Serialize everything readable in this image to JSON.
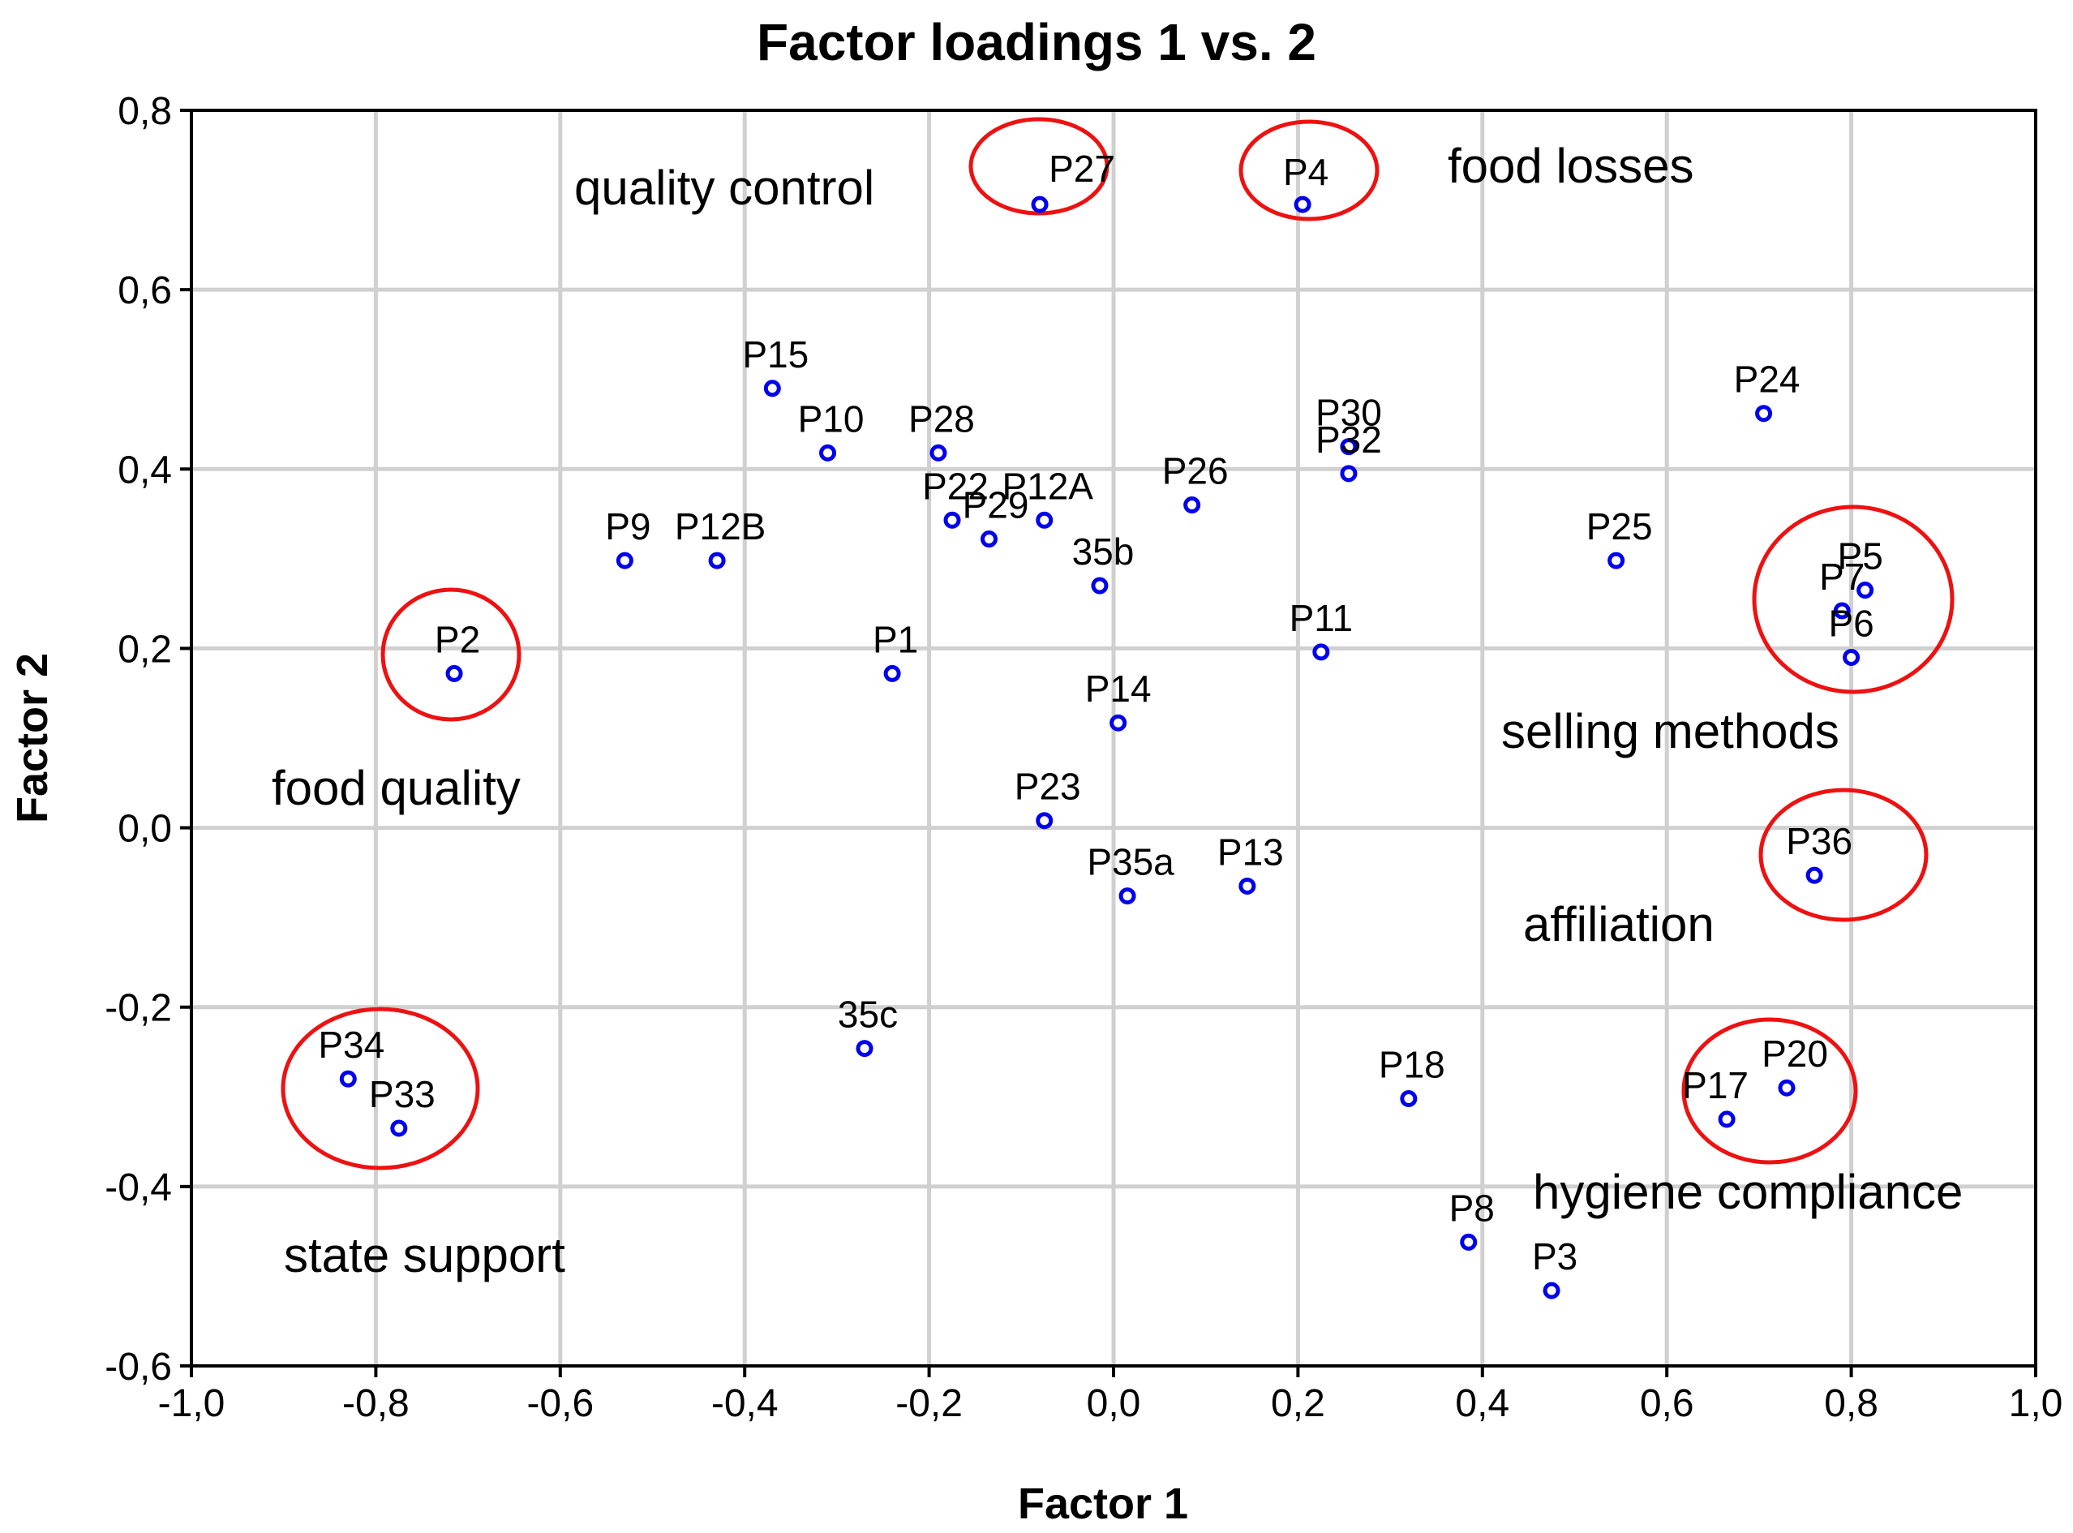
{
  "chart_data": {
    "type": "scatter",
    "title": "Factor loadings 1 vs. 2",
    "xlabel": "Factor 1",
    "ylabel": "Factor 2",
    "xlim": [
      -1.0,
      1.0
    ],
    "ylim": [
      -0.6,
      0.8
    ],
    "grid": true,
    "xticks": [
      -1.0,
      -0.8,
      -0.6,
      -0.4,
      -0.2,
      0.0,
      0.2,
      0.4,
      0.6,
      0.8,
      1.0
    ],
    "xtick_labels": [
      "-1,0",
      "-0,8",
      "-0,6",
      "-0,4",
      "-0,2",
      "0,0",
      "0,2",
      "0,4",
      "0,6",
      "0,8",
      "1,0"
    ],
    "yticks": [
      -0.6,
      -0.4,
      -0.2,
      0.0,
      0.2,
      0.4,
      0.6,
      0.8
    ],
    "ytick_labels": [
      "-0,6",
      "-0,4",
      "-0,2",
      "0,0",
      "0,2",
      "0,4",
      "0,6",
      "0,8"
    ],
    "points": [
      {
        "label": "P27",
        "x": -0.08,
        "y": 0.695
      },
      {
        "label": "P4",
        "x": 0.205,
        "y": 0.695
      },
      {
        "label": "P15",
        "x": -0.37,
        "y": 0.49
      },
      {
        "label": "P10",
        "x": -0.31,
        "y": 0.418
      },
      {
        "label": "P28",
        "x": -0.19,
        "y": 0.418
      },
      {
        "label": "P22",
        "x": -0.175,
        "y": 0.343
      },
      {
        "label": "P12A",
        "x": -0.075,
        "y": 0.343
      },
      {
        "label": "P29",
        "x": -0.135,
        "y": 0.322
      },
      {
        "label": "P26",
        "x": 0.085,
        "y": 0.36
      },
      {
        "label": "P30",
        "x": 0.255,
        "y": 0.425
      },
      {
        "label": "P32",
        "x": 0.255,
        "y": 0.395
      },
      {
        "label": "P24",
        "x": 0.705,
        "y": 0.462
      },
      {
        "label": "P9",
        "x": -0.53,
        "y": 0.298
      },
      {
        "label": "P12B",
        "x": -0.43,
        "y": 0.298
      },
      {
        "label": "35b",
        "x": -0.015,
        "y": 0.27
      },
      {
        "label": "P25",
        "x": 0.545,
        "y": 0.298
      },
      {
        "label": "P7",
        "x": 0.79,
        "y": 0.242
      },
      {
        "label": "P5",
        "x": 0.815,
        "y": 0.265
      },
      {
        "label": "P6",
        "x": 0.8,
        "y": 0.19
      },
      {
        "label": "P2",
        "x": -0.715,
        "y": 0.172
      },
      {
        "label": "P1",
        "x": -0.24,
        "y": 0.172
      },
      {
        "label": "P11",
        "x": 0.225,
        "y": 0.196
      },
      {
        "label": "P14",
        "x": 0.005,
        "y": 0.117
      },
      {
        "label": "P23",
        "x": -0.075,
        "y": 0.008
      },
      {
        "label": "P36",
        "x": 0.76,
        "y": -0.053
      },
      {
        "label": "P35a",
        "x": 0.015,
        "y": -0.076
      },
      {
        "label": "P13",
        "x": 0.145,
        "y": -0.065
      },
      {
        "label": "35c",
        "x": -0.27,
        "y": -0.246
      },
      {
        "label": "P34",
        "x": -0.83,
        "y": -0.28
      },
      {
        "label": "P33",
        "x": -0.775,
        "y": -0.335
      },
      {
        "label": "P18",
        "x": 0.32,
        "y": -0.302
      },
      {
        "label": "P17",
        "x": 0.665,
        "y": -0.325
      },
      {
        "label": "P20",
        "x": 0.73,
        "y": -0.29
      },
      {
        "label": "P8",
        "x": 0.385,
        "y": -0.462
      },
      {
        "label": "P3",
        "x": 0.475,
        "y": -0.516
      }
    ],
    "annotations": [
      "quality control",
      "food losses",
      "food quality",
      "selling methods",
      "affiliation",
      "hygiene compliance",
      "state support"
    ],
    "highlighted_groups": [
      {
        "name": "quality control",
        "members": [
          "P27"
        ]
      },
      {
        "name": "food losses",
        "members": [
          "P4"
        ]
      },
      {
        "name": "food quality",
        "members": [
          "P2"
        ]
      },
      {
        "name": "selling methods",
        "members": [
          "P7",
          "P5",
          "P6"
        ]
      },
      {
        "name": "affiliation",
        "members": [
          "P36"
        ]
      },
      {
        "name": "hygiene compliance",
        "members": [
          "P17",
          "P20"
        ]
      },
      {
        "name": "state support",
        "members": [
          "P34",
          "P33"
        ]
      }
    ]
  }
}
